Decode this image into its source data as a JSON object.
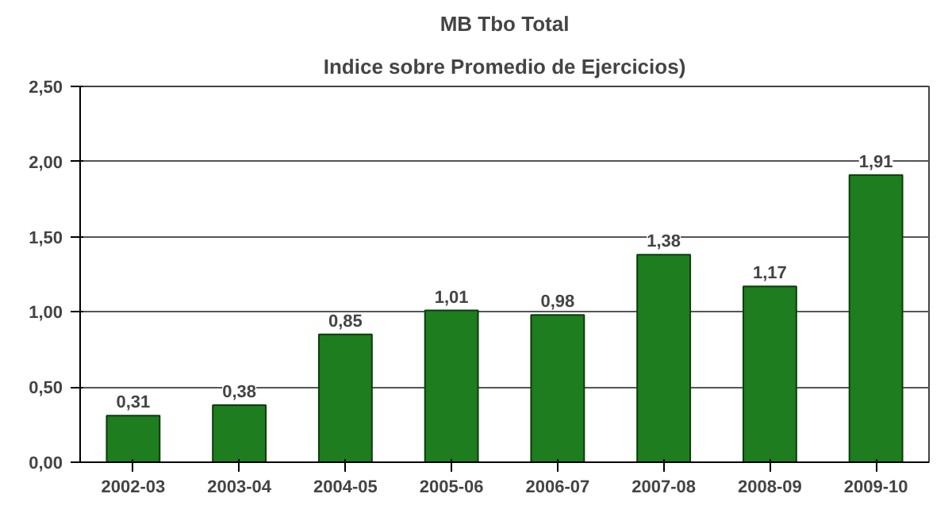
{
  "chart_data": {
    "type": "bar",
    "title": "MB Tbo Total",
    "subtitle": "Indice sobre Promedio de Ejercicios)",
    "categories": [
      "2002-03",
      "2003-04",
      "2004-05",
      "2005-06",
      "2006-07",
      "2007-08",
      "2008-09",
      "2009-10"
    ],
    "values": [
      0.31,
      0.38,
      0.85,
      1.01,
      0.98,
      1.38,
      1.17,
      1.91
    ],
    "value_labels": [
      "0,31",
      "0,38",
      "0,85",
      "1,01",
      "0,98",
      "1,38",
      "1,17",
      "1,91"
    ],
    "color": "#1e7d1e",
    "ylim": [
      0,
      2.5
    ],
    "yticks": [
      {
        "value": 0,
        "label": "0,00"
      },
      {
        "value": 0.5,
        "label": "0,50"
      },
      {
        "value": 1,
        "label": "1,00"
      },
      {
        "value": 1.5,
        "label": "1,50"
      },
      {
        "value": 2,
        "label": "2,00"
      },
      {
        "value": 2.5,
        "label": "2,50"
      }
    ],
    "grid": "y"
  }
}
